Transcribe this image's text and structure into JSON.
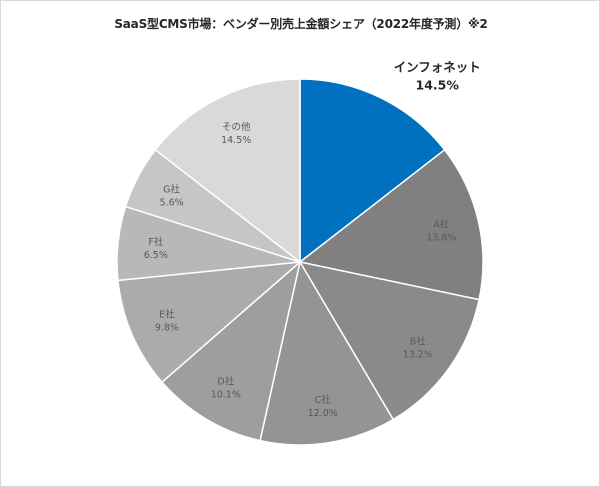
{
  "chart_data": {
    "type": "pie",
    "title": "SaaS型CMS市場：ベンダー別売上金額シェア（2022年度予測）※2",
    "start_angle_deg": 0,
    "direction": "clockwise",
    "slices": [
      {
        "name": "インフォネット",
        "value": 14.5,
        "label_value": "14.5%",
        "color": "#0070C0",
        "highlight": true
      },
      {
        "name": "A社",
        "value": 13.8,
        "label_value": "13.8%",
        "color": "#808080"
      },
      {
        "name": "B社",
        "value": 13.2,
        "label_value": "13.2%",
        "color": "#8A8A8A"
      },
      {
        "name": "C社",
        "value": 12.0,
        "label_value": "12.0%",
        "color": "#949494"
      },
      {
        "name": "D社",
        "value": 10.1,
        "label_value": "10.1%",
        "color": "#9E9E9E"
      },
      {
        "name": "E社",
        "value": 9.8,
        "label_value": "9.8%",
        "color": "#ABABAB"
      },
      {
        "name": "F社",
        "value": 6.5,
        "label_value": "6.5%",
        "color": "#B8B8B8"
      },
      {
        "name": "G社",
        "value": 5.6,
        "label_value": "5.6%",
        "color": "#C6C6C6"
      },
      {
        "name": "その他",
        "value": 14.5,
        "label_value": "14.5%",
        "color": "#D9D9D9"
      }
    ]
  }
}
